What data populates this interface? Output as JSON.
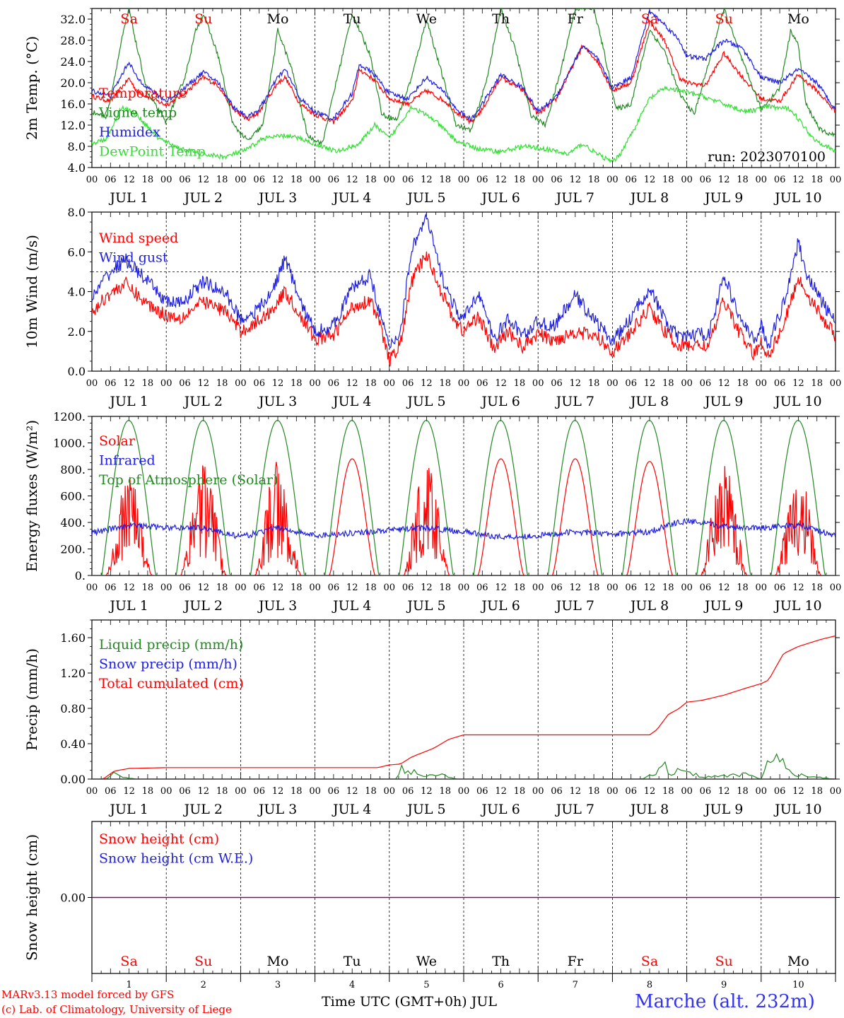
{
  "run_label": "run: 2023070100",
  "days": {
    "month": "JUL",
    "numbers": [
      "1",
      "2",
      "3",
      "4",
      "5",
      "6",
      "7",
      "8",
      "9",
      "10"
    ],
    "weekdays": [
      "Sa",
      "Su",
      "Mo",
      "Tu",
      "We",
      "Th",
      "Fr",
      "Sa",
      "Su",
      "Mo"
    ],
    "weekday_colors": [
      "#ff0000",
      "#ff0000",
      "#000000",
      "#000000",
      "#000000",
      "#000000",
      "#000000",
      "#ff0000",
      "#ff0000",
      "#000000"
    ],
    "hour_ticks": [
      "00",
      "06",
      "12",
      "18"
    ],
    "final_tick": "00"
  },
  "footer": {
    "model": "MARv3.13 model forced by GFS",
    "credit": "(c) Lab. of Climatology, University of Liege",
    "time_axis": "Time UTC (GMT+0h) JUL",
    "location": "Marche (alt. 232m)"
  },
  "chart_data": [
    {
      "id": "temperature",
      "type": "line",
      "ylabel": "2m Temp. (°C)",
      "ylim": [
        4,
        34
      ],
      "yticks": [
        "4.0",
        "8.0",
        "12.0",
        "16.0",
        "20.0",
        "24.0",
        "28.0",
        "32.0"
      ],
      "ytick_values": [
        4,
        8,
        12,
        16,
        20,
        24,
        28,
        32
      ],
      "x_units": "days since Jul 1 00 UTC",
      "show_weekdays_on_top": true,
      "annotation": "run: 2023070100",
      "series": [
        {
          "name": "Temperature",
          "color": "#ff0000",
          "x": [
            0,
            0.25,
            0.5,
            0.6,
            0.8,
            1.0,
            1.2,
            1.5,
            1.7,
            1.9,
            2.1,
            2.25,
            2.5,
            2.6,
            2.8,
            3.0,
            3.25,
            3.5,
            3.6,
            3.8,
            4.0,
            4.25,
            4.5,
            4.75,
            4.9,
            5.1,
            5.25,
            5.5,
            5.8,
            6.0,
            6.25,
            6.6,
            6.8,
            7.0,
            7.25,
            7.5,
            7.7,
            7.9,
            8.0,
            8.25,
            8.5,
            8.75,
            9.0,
            9.25,
            9.5,
            9.75,
            10.0
          ],
          "values": [
            17.5,
            16.5,
            20.8,
            18.5,
            17.0,
            15.8,
            17.5,
            21.0,
            19.5,
            15.0,
            13.0,
            14.5,
            20.0,
            21.0,
            16.0,
            14.0,
            12.6,
            16.5,
            22.5,
            20.5,
            17.0,
            16.0,
            18.5,
            16.5,
            14.5,
            12.4,
            15.0,
            21.0,
            18.5,
            14.0,
            17.0,
            27.0,
            24.0,
            18.5,
            20.0,
            31.5,
            28.0,
            21.0,
            20.0,
            19.5,
            25.5,
            21.0,
            17.0,
            16.5,
            21.5,
            18.5,
            14.5
          ]
        },
        {
          "name": "Vigne temp",
          "color": "#228822",
          "x": [
            0,
            0.2,
            0.4,
            0.5,
            0.6,
            0.75,
            1.0,
            1.25,
            1.4,
            1.5,
            1.7,
            1.9,
            2.1,
            2.3,
            2.45,
            2.5,
            2.7,
            2.9,
            3.1,
            3.25,
            3.5,
            3.75,
            3.9,
            4.1,
            4.3,
            4.5,
            4.7,
            4.9,
            5.1,
            5.3,
            5.5,
            5.7,
            5.9,
            6.1,
            6.3,
            6.5,
            6.75,
            6.9,
            7.05,
            7.25,
            7.5,
            7.7,
            7.9,
            8.1,
            8.3,
            8.5,
            8.75,
            9.0,
            9.25,
            9.4,
            9.5,
            9.6,
            9.8,
            10.0
          ],
          "values": [
            14.5,
            13.5,
            28.0,
            34.0,
            27.0,
            18.0,
            12.5,
            21.0,
            30.0,
            33.0,
            25.0,
            12.0,
            9.0,
            12.0,
            25.0,
            30.0,
            22.0,
            10.0,
            8.5,
            18.0,
            33.0,
            25.0,
            14.0,
            13.0,
            21.0,
            32.0,
            22.0,
            12.0,
            11.0,
            20.0,
            34.0,
            26.0,
            14.0,
            12.0,
            22.0,
            34.0,
            34.0,
            25.0,
            15.0,
            16.0,
            30.0,
            26.0,
            18.0,
            14.0,
            24.0,
            34.0,
            24.0,
            15.0,
            19.0,
            30.0,
            27.0,
            16.0,
            11.0,
            10.0
          ]
        },
        {
          "name": "Humidex",
          "color": "#1f1fe0",
          "x": [
            0,
            0.25,
            0.5,
            0.6,
            0.8,
            1.0,
            1.2,
            1.5,
            1.7,
            1.9,
            2.1,
            2.25,
            2.5,
            2.6,
            2.8,
            3.0,
            3.25,
            3.5,
            3.6,
            3.8,
            4.0,
            4.25,
            4.5,
            4.75,
            4.9,
            5.1,
            5.25,
            5.5,
            5.8,
            6.0,
            6.25,
            6.6,
            6.8,
            7.0,
            7.25,
            7.5,
            7.7,
            7.9,
            8.0,
            8.25,
            8.5,
            8.75,
            9.0,
            9.25,
            9.5,
            9.75,
            10.0
          ],
          "values": [
            18.5,
            17.5,
            24.0,
            21.0,
            18.5,
            16.5,
            18.5,
            22.0,
            20.0,
            15.5,
            13.5,
            15.0,
            21.0,
            22.5,
            17.0,
            14.5,
            13.2,
            18.0,
            23.5,
            21.5,
            18.0,
            17.0,
            21.0,
            18.0,
            15.0,
            13.0,
            16.0,
            21.5,
            19.0,
            14.5,
            17.5,
            27.0,
            24.5,
            19.0,
            21.0,
            33.5,
            31.0,
            28.0,
            25.0,
            24.5,
            28.0,
            26.5,
            21.0,
            20.0,
            22.5,
            20.0,
            15.0
          ]
        },
        {
          "name": "DewPoint Temp",
          "color": "#33dd33",
          "x": [
            0,
            0.2,
            0.4,
            0.6,
            0.9,
            1.2,
            1.5,
            1.8,
            2.1,
            2.3,
            2.6,
            2.8,
            3.1,
            3.3,
            3.6,
            3.8,
            4.0,
            4.3,
            4.6,
            4.9,
            5.2,
            5.5,
            5.8,
            6.1,
            6.4,
            6.6,
            6.8,
            7.0,
            7.1,
            7.3,
            7.5,
            7.7,
            7.9,
            8.2,
            8.5,
            8.8,
            9.1,
            9.4,
            9.7,
            10.0
          ],
          "values": [
            8.5,
            9.5,
            15.5,
            14.0,
            9.5,
            7.5,
            6.5,
            6.0,
            7.5,
            9.5,
            10.0,
            9.5,
            8.0,
            7.0,
            8.5,
            12.0,
            9.5,
            15.5,
            13.0,
            9.0,
            7.5,
            7.0,
            8.0,
            7.5,
            6.5,
            8.5,
            6.5,
            5.0,
            6.5,
            11.5,
            17.0,
            19.0,
            18.5,
            17.5,
            16.0,
            14.5,
            15.5,
            15.0,
            9.5,
            7.0
          ]
        }
      ]
    },
    {
      "id": "wind",
      "type": "line",
      "ylabel": "10m Wind (m/s)",
      "ylim": [
        0,
        8
      ],
      "yticks": [
        "0.0",
        "2.0",
        "4.0",
        "6.0",
        "8.0"
      ],
      "ytick_values": [
        0,
        2,
        4,
        6,
        8
      ],
      "x_units": "days since Jul 1 00 UTC",
      "reference_line": 5.0,
      "series": [
        {
          "name": "Wind speed",
          "color": "#ff0000",
          "x": [
            0,
            0.2,
            0.45,
            0.7,
            1.0,
            1.2,
            1.5,
            1.8,
            2.0,
            2.2,
            2.4,
            2.6,
            2.8,
            3.0,
            3.25,
            3.5,
            3.75,
            3.9,
            4.0,
            4.15,
            4.3,
            4.5,
            4.7,
            4.9,
            5.0,
            5.2,
            5.4,
            5.6,
            5.8,
            6.0,
            6.2,
            6.5,
            6.8,
            7.0,
            7.2,
            7.5,
            7.7,
            7.9,
            8.0,
            8.3,
            8.5,
            8.7,
            8.9,
            9.0,
            9.1,
            9.3,
            9.5,
            9.6,
            9.8,
            10.0
          ],
          "values": [
            2.9,
            3.8,
            4.4,
            3.5,
            2.8,
            2.7,
            3.5,
            3.0,
            2.0,
            2.4,
            3.0,
            4.0,
            2.8,
            1.6,
            1.8,
            3.2,
            3.6,
            2.0,
            0.5,
            1.4,
            4.5,
            5.9,
            4.0,
            2.4,
            2.0,
            2.8,
            1.1,
            2.0,
            1.2,
            1.9,
            1.5,
            2.0,
            1.7,
            1.0,
            1.7,
            3.2,
            2.0,
            1.2,
            1.3,
            1.3,
            3.6,
            2.0,
            0.8,
            1.4,
            0.8,
            2.3,
            4.7,
            4.0,
            2.8,
            1.8
          ]
        },
        {
          "name": "Wind gust",
          "color": "#1f1fe0",
          "x": [
            0,
            0.2,
            0.45,
            0.7,
            1.0,
            1.2,
            1.5,
            1.8,
            2.0,
            2.2,
            2.4,
            2.6,
            2.8,
            3.0,
            3.25,
            3.5,
            3.75,
            3.9,
            4.0,
            4.15,
            4.3,
            4.5,
            4.6,
            4.7,
            4.9,
            5.0,
            5.2,
            5.4,
            5.6,
            5.8,
            6.0,
            6.2,
            6.5,
            6.8,
            7.0,
            7.2,
            7.5,
            7.7,
            7.9,
            8.0,
            8.3,
            8.5,
            8.7,
            8.9,
            9.0,
            9.1,
            9.3,
            9.5,
            9.6,
            9.8,
            10.0
          ],
          "values": [
            3.6,
            4.8,
            5.6,
            4.7,
            3.5,
            3.4,
            4.5,
            3.9,
            2.6,
            3.0,
            3.8,
            5.7,
            3.5,
            2.0,
            2.3,
            4.2,
            4.8,
            2.5,
            1.2,
            2.0,
            6.2,
            7.7,
            6.3,
            4.8,
            3.0,
            2.6,
            4.0,
            1.6,
            2.6,
            1.8,
            2.5,
            2.2,
            3.8,
            2.4,
            1.5,
            2.4,
            4.2,
            2.6,
            1.6,
            1.8,
            1.9,
            4.8,
            2.8,
            1.5,
            2.3,
            1.3,
            3.4,
            6.5,
            5.0,
            3.6,
            2.4
          ]
        }
      ]
    },
    {
      "id": "energy",
      "type": "line",
      "ylabel": "Energy fluxes (W/m²)",
      "ylim": [
        0,
        1200
      ],
      "yticks": [
        "0.",
        "200.",
        "400.",
        "600.",
        "800.",
        "1000.",
        "1200."
      ],
      "ytick_values": [
        0,
        200,
        400,
        600,
        800,
        1000,
        1200
      ],
      "x_units": "days since Jul 1 00 UTC",
      "series": [
        {
          "name": "Solar",
          "color": "#ff0000",
          "daily_peak": [
            760,
            870,
            880,
            880,
            870,
            880,
            880,
            860,
            860,
            790
          ],
          "daily_style": [
            "spiky",
            "spiky",
            "spiky",
            "smooth",
            "spiky",
            "smooth",
            "smooth",
            "smooth",
            "spiky",
            "spiky"
          ]
        },
        {
          "name": "Infrared",
          "color": "#1f1fe0",
          "x": [
            0,
            0.5,
            1.0,
            1.5,
            2.0,
            2.5,
            3.0,
            3.5,
            4.0,
            4.5,
            5.0,
            5.5,
            6.0,
            6.5,
            7.0,
            7.5,
            7.8,
            8.0,
            8.5,
            9.0,
            9.5,
            10.0
          ],
          "values": [
            320,
            380,
            360,
            360,
            290,
            360,
            300,
            320,
            340,
            360,
            330,
            290,
            300,
            330,
            310,
            330,
            390,
            410,
            370,
            360,
            380,
            300
          ]
        },
        {
          "name": "Top of Atmosphere (Solar)",
          "color": "#228822",
          "daily_peak": [
            1170,
            1170,
            1170,
            1170,
            1170,
            1170,
            1170,
            1170,
            1170,
            1170
          ]
        }
      ]
    },
    {
      "id": "precip",
      "type": "line",
      "ylabel": "Precip (mm/h)",
      "ylim": [
        0,
        1.8
      ],
      "yticks": [
        "0.00",
        "0.40",
        "0.80",
        "1.20",
        "1.60"
      ],
      "ytick_values": [
        0,
        0.4,
        0.8,
        1.2,
        1.6
      ],
      "x_units": "days since Jul 1 00 UTC",
      "series": [
        {
          "name": "Liquid precip (mm/h)",
          "color": "#228822",
          "x": [
            0,
            0.2,
            0.3,
            0.4,
            0.6,
            1.0,
            4.1,
            4.15,
            4.2,
            4.3,
            4.5,
            4.7,
            4.8,
            4.9,
            5.0,
            7.4,
            7.5,
            7.7,
            7.8,
            8.0,
            8.2,
            8.5,
            8.8,
            9.0,
            9.05,
            9.1,
            9.3,
            9.5,
            9.8,
            10.0
          ],
          "values": [
            0,
            0,
            0.08,
            0.02,
            0,
            0,
            0,
            0.2,
            0.05,
            0.1,
            0.06,
            0.08,
            0.02,
            0,
            0,
            0,
            0.04,
            0.17,
            0.08,
            0.14,
            0.02,
            0.04,
            0.06,
            0,
            0.1,
            0.28,
            0.18,
            0.05,
            0.02,
            0
          ]
        },
        {
          "name": "Snow precip (mm/h)",
          "color": "#1f1fe0",
          "x": [
            0,
            10
          ],
          "values": [
            0,
            0
          ]
        },
        {
          "name": "Total cumulated (cm)",
          "color": "#ff0000",
          "x": [
            0,
            0.15,
            0.3,
            0.5,
            1.0,
            2.0,
            3.0,
            3.85,
            4.0,
            4.15,
            4.3,
            4.6,
            4.8,
            5.0,
            6.0,
            7.0,
            7.5,
            7.6,
            7.75,
            7.9,
            8.0,
            8.2,
            8.5,
            8.8,
            9.0,
            9.1,
            9.3,
            9.5,
            9.8,
            10.0
          ],
          "values": [
            0,
            0,
            0.09,
            0.12,
            0.13,
            0.13,
            0.13,
            0.13,
            0.16,
            0.17,
            0.25,
            0.35,
            0.45,
            0.5,
            0.5,
            0.5,
            0.5,
            0.56,
            0.73,
            0.8,
            0.87,
            0.89,
            0.95,
            1.03,
            1.08,
            1.12,
            1.42,
            1.5,
            1.58,
            1.62
          ]
        }
      ]
    },
    {
      "id": "snow",
      "type": "line",
      "ylabel": "Snow height (cm)",
      "ylim": [
        -1,
        1
      ],
      "yticks": [
        "0.00"
      ],
      "ytick_values": [
        0
      ],
      "x_units": "days since Jul 1 00 UTC",
      "show_weekdays_on_bottom": true,
      "series": [
        {
          "name": "Snow height (cm)",
          "color": "#ff0000",
          "x": [
            0,
            10
          ],
          "values": [
            0,
            0
          ]
        },
        {
          "name": "Snow height (cm W.E.)",
          "color": "#1f1fe0",
          "x": [
            0,
            10
          ],
          "values": [
            0,
            0
          ]
        }
      ]
    }
  ]
}
